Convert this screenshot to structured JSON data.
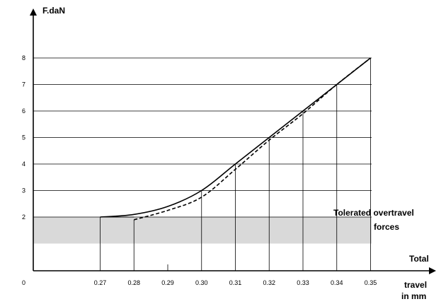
{
  "colors": {
    "band": "#d9d9d9",
    "line": "#000000",
    "background": "#ffffff"
  },
  "chart_data": {
    "type": "line",
    "title": "",
    "ylabel": "F.daN",
    "xlabel": "Total travel in mm",
    "xlabel_lines": [
      "Total",
      "travel",
      "in mm"
    ],
    "origin_label": "0",
    "x_ticks": [
      "0.27",
      "0.28",
      "0.29",
      "0.30",
      "0.31",
      "0.32",
      "0.33",
      "0.34",
      "0.35"
    ],
    "y_ticks": [
      "2",
      "3",
      "4",
      "5",
      "6",
      "7",
      "8"
    ],
    "xlim": [
      0.25,
      0.37
    ],
    "ylim": [
      -1,
      8.8
    ],
    "grid": "horizontal lines at each force value",
    "series": [
      {
        "style": "solid",
        "x": [
          0.27,
          0.28,
          0.29,
          0.3,
          0.31,
          0.32,
          0.33,
          0.34,
          0.35
        ],
        "y": [
          2.0,
          2.1,
          2.4,
          3.0,
          4.0,
          5.0,
          6.0,
          7.0,
          8.0
        ]
      },
      {
        "style": "dashed",
        "x": [
          0.28,
          0.29,
          0.3,
          0.31,
          0.32,
          0.33,
          0.34,
          0.35
        ],
        "y": [
          1.9,
          2.25,
          2.75,
          3.8,
          4.9,
          5.9,
          7.0,
          8.0
        ]
      }
    ],
    "band": {
      "from": 1.0,
      "to": 2.0,
      "label_lines": [
        "Tolerated overtravel",
        "forces"
      ]
    }
  }
}
